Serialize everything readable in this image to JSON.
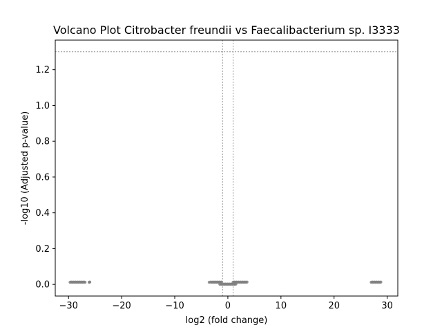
{
  "chart_data": {
    "type": "scatter",
    "title": "Volcano Plot Citrobacter freundii vs Faecalibacterium sp. I3333",
    "xlabel": "log2 (fold change)",
    "ylabel": "-log10 (Adjusted p-value)",
    "xlim": [
      -32.5,
      32
    ],
    "ylim": [
      -0.065,
      1.365
    ],
    "xticks": [
      -30,
      -20,
      -10,
      0,
      10,
      20,
      30
    ],
    "xtick_labels": [
      "−30",
      "−20",
      "−10",
      "0",
      "10",
      "20",
      "30"
    ],
    "yticks": [
      0.0,
      0.2,
      0.4,
      0.6,
      0.8,
      1.0,
      1.2
    ],
    "ytick_labels": [
      "0.0",
      "0.2",
      "0.4",
      "0.6",
      "0.8",
      "1.0",
      "1.2"
    ],
    "grid": false,
    "threshold_lines": {
      "vertical": [
        -1,
        1
      ],
      "horizontal": 1.3
    },
    "point_color": "#808080",
    "threshold_color": "#808080",
    "series": [
      {
        "x": [
          -29.7,
          -29.5,
          -29.3,
          -29.1,
          -28.9,
          -28.7,
          -28.5,
          -28.3,
          -28.1,
          -27.9,
          -27.7,
          -27.5,
          -27.3,
          -27.1,
          -26.9,
          -26.1,
          -26.0,
          -3.5,
          -3.2,
          -3.0,
          -2.8,
          -2.6,
          -2.4,
          -2.2,
          -2.0,
          -1.8,
          -1.6,
          -1.4,
          -1.2,
          -1.5,
          -1.3,
          -1.1,
          -0.9,
          -0.7,
          -0.5,
          -0.3,
          -0.1,
          0.1,
          0.3,
          0.5,
          0.7,
          0.9,
          1.1,
          1.3,
          1.5,
          1.0,
          1.2,
          1.4,
          1.6,
          1.8,
          2.0,
          2.2,
          2.4,
          2.6,
          2.8,
          3.0,
          3.2,
          3.4,
          3.6,
          27.0,
          27.2,
          27.4,
          27.6,
          27.8,
          28.0,
          28.2,
          28.4,
          28.6,
          28.8
        ],
        "y": [
          0.012,
          0.013,
          0.012,
          0.013,
          0.012,
          0.013,
          0.012,
          0.013,
          0.012,
          0.013,
          0.012,
          0.013,
          0.012,
          0.013,
          0.012,
          0.012,
          0.013,
          0.012,
          0.013,
          0.012,
          0.013,
          0.012,
          0.013,
          0.012,
          0.013,
          0.012,
          0.013,
          0.012,
          0.013,
          0.001,
          0.002,
          0.001,
          0.002,
          0.001,
          0.002,
          0.001,
          0.002,
          0.001,
          0.002,
          0.001,
          0.002,
          0.001,
          0.002,
          0.001,
          0.002,
          0.012,
          0.013,
          0.012,
          0.013,
          0.012,
          0.013,
          0.012,
          0.013,
          0.012,
          0.013,
          0.012,
          0.013,
          0.012,
          0.013,
          0.012,
          0.013,
          0.012,
          0.013,
          0.012,
          0.013,
          0.012,
          0.013,
          0.012,
          0.013
        ]
      }
    ]
  }
}
